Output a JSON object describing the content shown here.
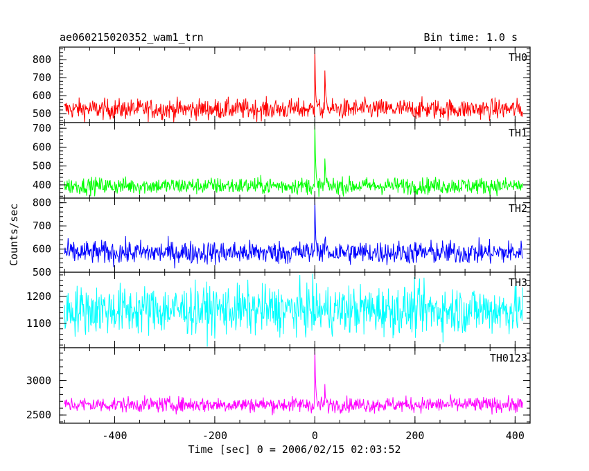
{
  "header": {
    "left_title": "ae060215020352_wam1_trn",
    "right_title": "Bin time: 1.0 s"
  },
  "axes": {
    "xlabel": "Time [sec] 0 = 2006/02/15 02:03:52",
    "ylabel": "Counts/sec"
  },
  "chart_data": [
    {
      "type": "line",
      "name": "TH0",
      "color": "#ff0000",
      "xlim": [
        -510,
        430
      ],
      "ylim": [
        450,
        870
      ],
      "yticks": [
        500,
        600,
        700,
        800
      ],
      "xticks": [
        -400,
        -200,
        0,
        200,
        400
      ],
      "x_range_data": [
        -500,
        415
      ],
      "baseline": 525,
      "noise": 28,
      "events": [
        {
          "x": 0,
          "y": 870
        },
        {
          "x": 20,
          "y": 740
        }
      ]
    },
    {
      "type": "line",
      "name": "TH1",
      "color": "#00ff00",
      "xlim": [
        -510,
        430
      ],
      "ylim": [
        330,
        730
      ],
      "yticks": [
        400,
        500,
        600,
        700
      ],
      "xticks": [
        -400,
        -200,
        0,
        200,
        400
      ],
      "x_range_data": [
        -500,
        415
      ],
      "baseline": 395,
      "noise": 22,
      "events": [
        {
          "x": 0,
          "y": 730
        },
        {
          "x": 20,
          "y": 540
        }
      ]
    },
    {
      "type": "line",
      "name": "TH2",
      "color": "#0000ff",
      "xlim": [
        -510,
        430
      ],
      "ylim": [
        500,
        820
      ],
      "yticks": [
        500,
        600,
        700,
        800
      ],
      "xticks": [
        -400,
        -200,
        0,
        200,
        400
      ],
      "x_range_data": [
        -500,
        415
      ],
      "baseline": 585,
      "noise": 25,
      "events": [
        {
          "x": 0,
          "y": 820
        },
        {
          "x": 20,
          "y": 640
        }
      ]
    },
    {
      "type": "line",
      "name": "TH3",
      "color": "#00ffff",
      "xlim": [
        -510,
        430
      ],
      "ylim": [
        1010,
        1290
      ],
      "yticks": [
        1100,
        1200
      ],
      "xticks": [
        -400,
        -200,
        0,
        200,
        400
      ],
      "x_range_data": [
        -500,
        415
      ],
      "baseline": 1150,
      "noise": 45,
      "events": []
    },
    {
      "type": "line",
      "name": "TH0123",
      "color": "#ff00ff",
      "xlim": [
        -510,
        430
      ],
      "ylim": [
        2380,
        3480
      ],
      "yticks": [
        2500,
        3000
      ],
      "xticks": [
        -400,
        -200,
        0,
        200,
        400
      ],
      "x_range_data": [
        -500,
        415
      ],
      "baseline": 2650,
      "noise": 55,
      "events": [
        {
          "x": 0,
          "y": 3480
        },
        {
          "x": 20,
          "y": 2950
        }
      ]
    }
  ]
}
